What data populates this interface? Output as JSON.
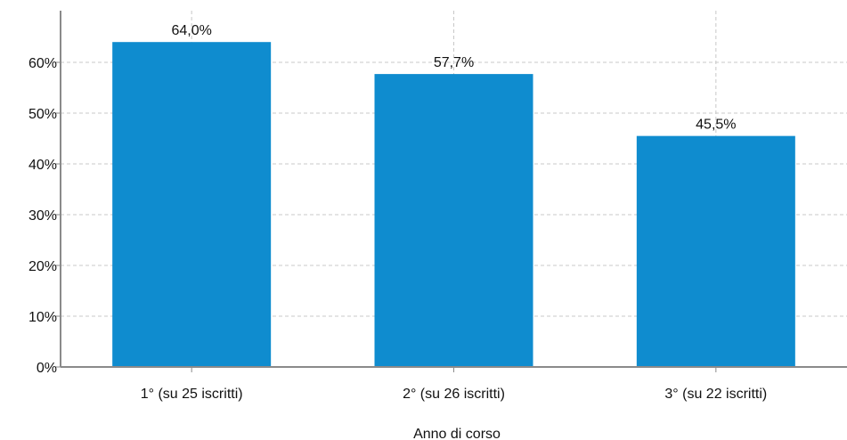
{
  "chart_data": {
    "type": "bar",
    "categories": [
      "1° (su 25 iscritti)",
      "2° (su 26 iscritti)",
      "3° (su 22 iscritti)"
    ],
    "values": [
      64.0,
      57.7,
      45.5
    ],
    "value_labels": [
      "64,0%",
      "57,7%",
      "45,5%"
    ],
    "title": "",
    "xlabel": "Anno di corso",
    "ylabel": "",
    "ylim": [
      0,
      70
    ],
    "yticks": [
      0,
      10,
      20,
      30,
      40,
      50,
      60
    ],
    "ytick_labels": [
      "0%",
      "10%",
      "20%",
      "30%",
      "40%",
      "50%",
      "60%"
    ],
    "grid": true,
    "bar_color": "#0f8ccf"
  }
}
